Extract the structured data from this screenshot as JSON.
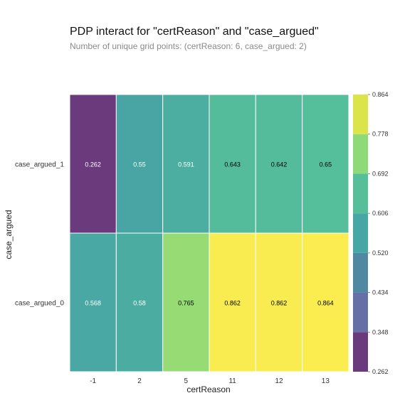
{
  "title": "PDP interact for \"certReason\" and \"case_argued\"",
  "subtitle": "Number of unique grid points: (certReason: 6, case_argued: 2)",
  "chart_data": {
    "type": "heatmap",
    "xlabel": "certReason",
    "ylabel": "case_argued",
    "x_categories": [
      "-1",
      "2",
      "5",
      "11",
      "12",
      "13"
    ],
    "y_categories": [
      "case_argued_1",
      "case_argued_0"
    ],
    "values": [
      [
        0.262,
        0.55,
        0.591,
        0.643,
        0.642,
        0.65
      ],
      [
        0.568,
        0.58,
        0.765,
        0.862,
        0.862,
        0.864
      ]
    ],
    "value_labels": [
      [
        "0.262",
        "0.55",
        "0.591",
        "0.643",
        "0.642",
        "0.65"
      ],
      [
        "0.568",
        "0.58",
        "0.765",
        "0.862",
        "0.862",
        "0.864"
      ]
    ],
    "colorbar": {
      "min": 0.262,
      "max": 0.864,
      "tick_labels": [
        "0.262",
        "0.348",
        "0.434",
        "0.520",
        "0.606",
        "0.692",
        "0.778",
        "0.864"
      ],
      "colors": [
        "#6a3a7c",
        "#6770a6",
        "#5088a1",
        "#46a7a4",
        "#56bf9a",
        "#8ed978",
        "#dbe54a"
      ]
    },
    "colormap": "viridis",
    "grid": false,
    "legend": "colorbar-right"
  }
}
